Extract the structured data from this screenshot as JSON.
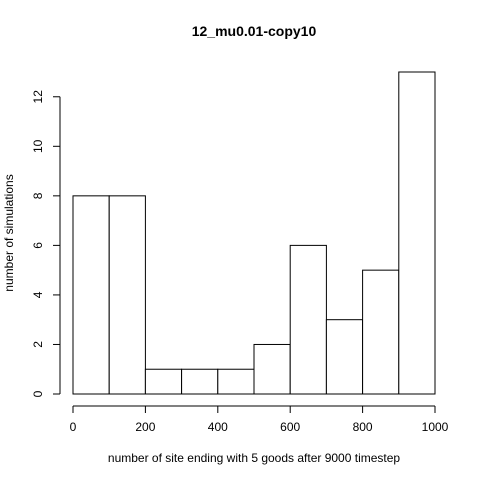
{
  "chart_data": {
    "type": "bar",
    "title": "12_mu0.01-copy10",
    "xlabel": "number of site ending with 5 goods after 9000 timestep",
    "ylabel": "number of simulations",
    "bins": [
      {
        "from": 0,
        "to": 100,
        "count": 8
      },
      {
        "from": 100,
        "to": 200,
        "count": 8
      },
      {
        "from": 200,
        "to": 300,
        "count": 1
      },
      {
        "from": 300,
        "to": 400,
        "count": 1
      },
      {
        "from": 400,
        "to": 500,
        "count": 1
      },
      {
        "from": 500,
        "to": 600,
        "count": 2
      },
      {
        "from": 600,
        "to": 700,
        "count": 6
      },
      {
        "from": 700,
        "to": 800,
        "count": 3
      },
      {
        "from": 800,
        "to": 900,
        "count": 5
      },
      {
        "from": 900,
        "to": 1000,
        "count": 13
      }
    ],
    "xlim": [
      0,
      1000
    ],
    "ylim": [
      0,
      13
    ],
    "xticks": [
      0,
      200,
      400,
      600,
      800,
      1000
    ],
    "yticks": [
      0,
      2,
      4,
      6,
      8,
      10,
      12
    ],
    "grid": false,
    "bar_fill": "#ffffff",
    "bar_stroke": "#000000"
  }
}
